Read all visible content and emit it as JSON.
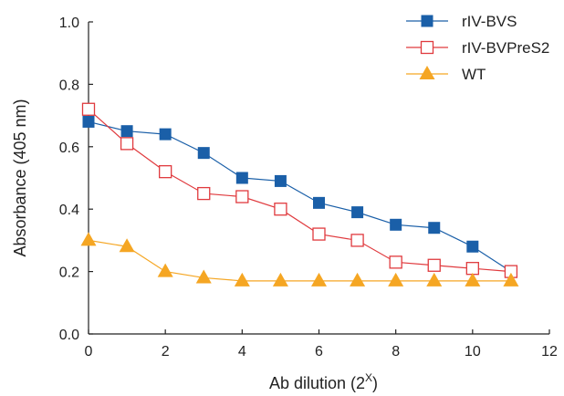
{
  "chart_data": {
    "type": "line",
    "title": "",
    "xlabel": "Ab dilution (2",
    "xlabel_superscript": "X",
    "xlabel_suffix": ")",
    "ylabel": "Absorbance (405 nm)",
    "xlim": [
      0,
      12
    ],
    "ylim": [
      0.0,
      1.0
    ],
    "xticks": [
      0,
      2,
      4,
      6,
      8,
      10,
      12
    ],
    "yticks": [
      "0.0",
      "0.2",
      "0.4",
      "0.6",
      "0.8",
      "1.0"
    ],
    "grid": false,
    "legend_position": "top-right",
    "x": [
      0,
      1,
      2,
      3,
      4,
      5,
      6,
      7,
      8,
      9,
      10,
      11
    ],
    "series": [
      {
        "name": "rIV-BVS",
        "marker": "filled-square",
        "color": "#1a5fa8",
        "values": [
          0.68,
          0.65,
          0.64,
          0.58,
          0.5,
          0.49,
          0.42,
          0.39,
          0.35,
          0.34,
          0.28,
          0.2
        ]
      },
      {
        "name": "rIV-BVPreS2",
        "marker": "open-square",
        "color": "#e03a3e",
        "values": [
          0.72,
          0.61,
          0.52,
          0.45,
          0.44,
          0.4,
          0.32,
          0.3,
          0.23,
          0.22,
          0.21,
          0.2
        ]
      },
      {
        "name": "WT",
        "marker": "filled-triangle",
        "color": "#f5a623",
        "values": [
          0.3,
          0.28,
          0.2,
          0.18,
          0.17,
          0.17,
          0.17,
          0.17,
          0.17,
          0.17,
          0.17,
          0.17
        ]
      }
    ]
  }
}
